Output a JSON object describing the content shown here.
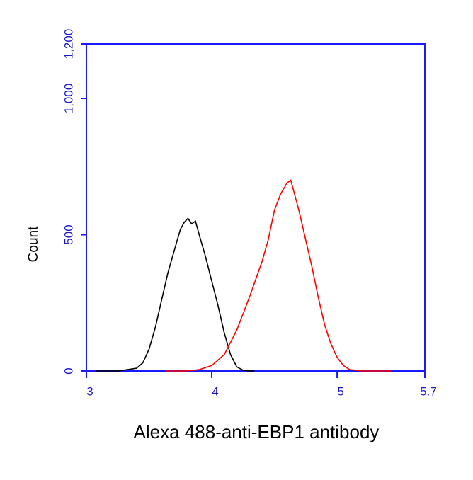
{
  "chart_data": {
    "type": "line",
    "x_label": "Alexa 488-anti-EBP1 antibody",
    "y_label": "Count",
    "xlim": [
      3,
      5.7
    ],
    "xticks": [
      3,
      4,
      5,
      5.7
    ],
    "ylim": [
      0,
      1200
    ],
    "yticks": [
      0,
      500,
      {
        "value": 1000,
        "label": "1,000"
      },
      {
        "value": 1200,
        "label": "1,200"
      }
    ],
    "axis_color": "#1a1aff",
    "series": [
      {
        "color": "#000000",
        "x": [
          3.08,
          3.25,
          3.3,
          3.4,
          3.45,
          3.5,
          3.55,
          3.6,
          3.65,
          3.7,
          3.75,
          3.78,
          3.81,
          3.84,
          3.87,
          3.9,
          3.95,
          4.0,
          4.05,
          4.1,
          4.15,
          4.2,
          4.25,
          4.3,
          4.34
        ],
        "values": [
          0,
          0,
          3,
          10,
          30,
          80,
          160,
          260,
          360,
          440,
          520,
          545,
          560,
          540,
          550,
          500,
          420,
          330,
          240,
          140,
          60,
          15,
          3,
          0,
          0
        ]
      },
      {
        "color": "#ff0000",
        "x": [
          3.63,
          3.8,
          3.9,
          4.0,
          4.1,
          4.2,
          4.3,
          4.4,
          4.45,
          4.5,
          4.55,
          4.6,
          4.63,
          4.66,
          4.7,
          4.75,
          4.8,
          4.85,
          4.9,
          4.95,
          5.0,
          5.05,
          5.1,
          5.2,
          5.43
        ],
        "values": [
          0,
          0,
          5,
          20,
          60,
          150,
          270,
          400,
          480,
          590,
          650,
          690,
          700,
          650,
          580,
          480,
          380,
          270,
          170,
          100,
          50,
          20,
          5,
          0,
          0
        ]
      }
    ]
  }
}
